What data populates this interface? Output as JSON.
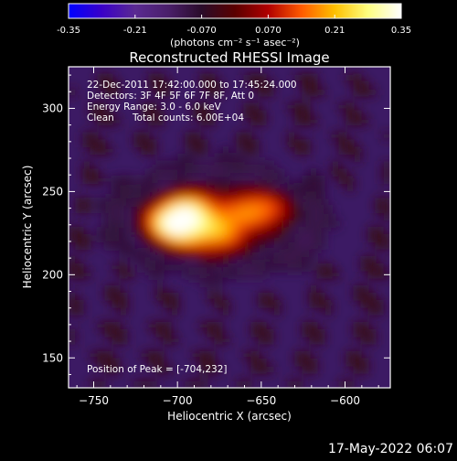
{
  "chart_data": {
    "type": "heatmap",
    "title": "Reconstructed RHESSI Image",
    "xlabel": "Heliocentric X (arcsec)",
    "ylabel": "Heliocentric Y (arcsec)",
    "x_ticks": [
      -750,
      -700,
      -650,
      -600
    ],
    "y_ticks": [
      150,
      200,
      250,
      300
    ],
    "xlim": [
      -765,
      -573
    ],
    "ylim": [
      132,
      325
    ],
    "colorbar": {
      "ticks": [
        "-0.35",
        "-0.21",
        "-0.070",
        "0.070",
        "0.21",
        "0.35"
      ],
      "range": [
        -0.35,
        0.35
      ],
      "unit_label": "(photons cm⁻² s⁻¹ asec⁻²)",
      "colormap": [
        "#0000ff",
        "#3a00c8",
        "#5a2a92",
        "#4a1f6a",
        "#2a0c2a",
        "#5a0000",
        "#b00000",
        "#ff5a00",
        "#ffc000",
        "#ffff80",
        "#ffffff"
      ]
    },
    "annotations": [
      "22-Dec-2011 17:42:00.000 to 17:45:24.000",
      "Detectors: 3F 4F 5F 6F 7F 8F, Att 0",
      "Energy Range: 3.0 - 6.0 keV",
      "Clean",
      "Total counts: 6.00E+04",
      "Position of Peak = [-704,232]"
    ],
    "peak": {
      "x": -704,
      "y": 232
    },
    "emission_sources": [
      {
        "x": -704,
        "y": 232,
        "sx": 11,
        "sy": 9,
        "amp": 0.35
      },
      {
        "x": -680,
        "y": 227,
        "sx": 16,
        "sy": 10,
        "amp": 0.27
      },
      {
        "x": -650,
        "y": 240,
        "sx": 13,
        "sy": 8,
        "amp": 0.22
      },
      {
        "x": -690,
        "y": 242,
        "sx": 10,
        "sy": 7,
        "amp": 0.16
      }
    ],
    "timestamp": "17-May-2022 06:07"
  }
}
